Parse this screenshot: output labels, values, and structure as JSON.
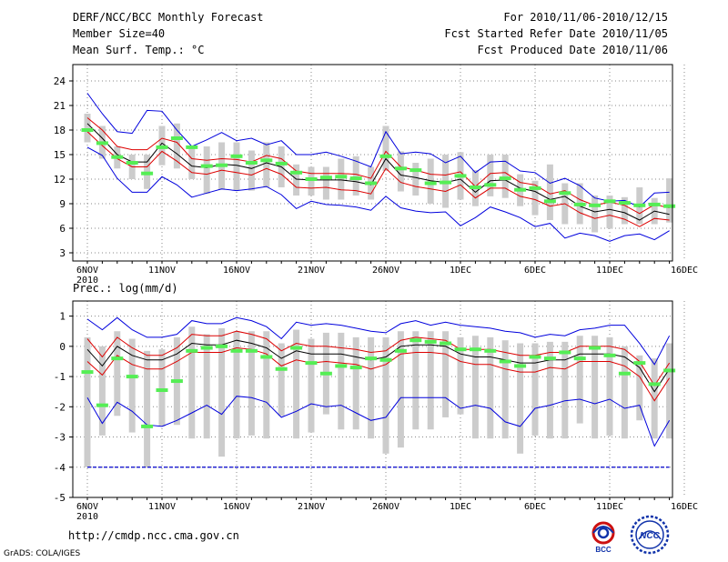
{
  "header": {
    "title": "DERF/NCC/BCC Monthly Forecast",
    "member_size": "Member Size=40",
    "variable": "Mean Surf. Temp.: °C",
    "period": "For 2010/11/06-2010/12/15",
    "started": "Fcst Started Refer Date 2010/11/05",
    "produced": "Fcst Produced Date 2010/11/06"
  },
  "footer": {
    "url": "http://cmdp.ncc.cma.gov.cn",
    "credit": "GrADS: COLA/IGES"
  },
  "logos": {
    "bcc": "BCC",
    "ncc": "NCC"
  },
  "colors": {
    "max_min": "#0000dd",
    "spread": "#dd0000",
    "mean": "#000000",
    "obs": "#55ee55",
    "box": "#cccccc",
    "floor": "#0000cc",
    "grid": "#888888"
  },
  "chart_data": [
    {
      "type": "box-line",
      "name": "temperature",
      "title": "Mean Surf. Temp.: °C",
      "x": [
        "11-06",
        "11-07",
        "11-08",
        "11-09",
        "11-10",
        "11-11",
        "11-12",
        "11-13",
        "11-14",
        "11-15",
        "11-16",
        "11-17",
        "11-18",
        "11-19",
        "11-20",
        "11-21",
        "11-22",
        "11-23",
        "11-24",
        "11-25",
        "11-26",
        "11-27",
        "11-28",
        "11-29",
        "11-30",
        "12-01",
        "12-02",
        "12-03",
        "12-04",
        "12-05",
        "12-06",
        "12-07",
        "12-08",
        "12-09",
        "12-10",
        "12-11",
        "12-12",
        "12-13",
        "12-14",
        "12-15"
      ],
      "xticks": [
        "6NOV",
        "11NOV",
        "16NOV",
        "21NOV",
        "26NOV",
        "1DEC",
        "6DEC",
        "11DEC",
        "16DEC"
      ],
      "xyear": "2010",
      "ylim": [
        2,
        26
      ],
      "yticks": [
        3,
        6,
        9,
        12,
        15,
        18,
        21,
        24
      ],
      "series": [
        {
          "name": "max",
          "values": [
            22.5,
            20,
            17.8,
            17.6,
            20.4,
            20.3,
            18,
            16,
            16.8,
            17.7,
            16.7,
            17,
            16.2,
            16.7,
            15,
            15,
            15.3,
            14.8,
            14.2,
            13.5,
            17.8,
            15.1,
            15.3,
            15.1,
            14,
            14.8,
            12.8,
            14.1,
            14.2,
            13,
            12.8,
            11.5,
            12.1,
            11.2,
            9.7,
            9.3,
            9.4,
            8.6,
            10.3,
            10.4
          ]
        },
        {
          "name": "upper",
          "values": [
            19.5,
            18,
            16,
            15.6,
            15.6,
            17,
            16.5,
            14.5,
            14.3,
            14.5,
            14.4,
            14.1,
            14.9,
            14.5,
            13,
            12.7,
            12.7,
            12.7,
            12.6,
            12.1,
            15.4,
            13.5,
            13.1,
            12.6,
            12.5,
            12.9,
            11.1,
            12.7,
            12.8,
            11.6,
            11.3,
            10.2,
            10.6,
            9.5,
            8.8,
            9.2,
            8.8,
            7.8,
            8.9,
            8.5
          ]
        },
        {
          "name": "mean",
          "values": [
            18.8,
            17,
            15,
            14.1,
            14.1,
            16.4,
            15.1,
            13.6,
            13.4,
            13.8,
            13.7,
            13.3,
            14,
            13.5,
            12,
            11.9,
            11.9,
            11.9,
            11.7,
            11.3,
            14.5,
            12.5,
            12.2,
            11.8,
            11.6,
            12,
            10.4,
            11.8,
            11.9,
            10.9,
            10.5,
            9.5,
            9.9,
            8.7,
            8,
            8.3,
            7.9,
            7,
            8.1,
            7.7
          ]
        },
        {
          "name": "lower",
          "values": [
            17.8,
            16.1,
            14.5,
            13.5,
            13.5,
            15.4,
            14.2,
            12.8,
            12.6,
            13.1,
            12.8,
            12.5,
            13.3,
            12.6,
            11,
            10.9,
            11,
            10.7,
            10.6,
            10.2,
            13.3,
            11.6,
            11.1,
            10.8,
            10.5,
            11.3,
            9.7,
            10.9,
            10.9,
            9.9,
            9.5,
            8.7,
            9,
            7.9,
            7.2,
            7.6,
            7.1,
            6.2,
            7.2,
            7
          ]
        },
        {
          "name": "min",
          "values": [
            15.9,
            14.9,
            12.1,
            10.4,
            10.4,
            12.3,
            11.3,
            9.8,
            10.3,
            10.8,
            10.6,
            10.8,
            11.1,
            10.1,
            8.4,
            9.3,
            8.9,
            8.8,
            8.6,
            8.2,
            9.9,
            8.5,
            8.1,
            7.9,
            8,
            6.3,
            7.3,
            8.6,
            8,
            7.3,
            6.2,
            6.6,
            4.8,
            5.4,
            5.1,
            4.4,
            5.1,
            5.3,
            4.6,
            5.7
          ]
        },
        {
          "name": "observed",
          "values": [
            18,
            16.4,
            14.7,
            14,
            12.7,
            15.9,
            17,
            15.9,
            13.6,
            13.7,
            14.8,
            14,
            14.3,
            13.9,
            12.8,
            12,
            12.2,
            12.3,
            12.1,
            11.5,
            14.8,
            13.3,
            13.1,
            11.5,
            11.6,
            12.4,
            11,
            11.3,
            12.1,
            10.7,
            10.9,
            9.3,
            10.3,
            8.9,
            8.8,
            9.3,
            9.1,
            8.8,
            8.9,
            8.7
          ]
        },
        {
          "name": "box_high",
          "values": [
            20,
            18.5,
            16,
            15,
            15,
            18.5,
            18.8,
            16,
            16,
            16.5,
            16.5,
            15.5,
            16.5,
            16,
            13.8,
            13.5,
            13.5,
            14.5,
            14.8,
            13.5,
            18.5,
            15.4,
            14,
            14.5,
            15,
            15.3,
            13.1,
            15,
            15,
            12.6,
            11.8,
            13.8,
            11.5,
            11.5,
            10,
            10,
            9.8,
            11,
            9.7,
            12.1
          ]
        },
        {
          "name": "box_low",
          "values": [
            16.5,
            14.5,
            13.3,
            12,
            10.8,
            13.7,
            13.3,
            12,
            10.2,
            10.7,
            10.6,
            10.6,
            11,
            11,
            10,
            10,
            9.5,
            9.5,
            10,
            9.5,
            13,
            10.5,
            10,
            9,
            8.5,
            9.5,
            8.7,
            9.9,
            9.7,
            8.7,
            7.6,
            7,
            6.5,
            6.5,
            5.5,
            6,
            6.5,
            6.5,
            6.5,
            6.7
          ]
        }
      ]
    },
    {
      "type": "box-line",
      "name": "precipitation",
      "title": "Prec.: log(mm/d)",
      "x": [
        "11-06",
        "11-07",
        "11-08",
        "11-09",
        "11-10",
        "11-11",
        "11-12",
        "11-13",
        "11-14",
        "11-15",
        "11-16",
        "11-17",
        "11-18",
        "11-19",
        "11-20",
        "11-21",
        "11-22",
        "11-23",
        "11-24",
        "11-25",
        "11-26",
        "11-27",
        "11-28",
        "11-29",
        "11-30",
        "12-01",
        "12-02",
        "12-03",
        "12-04",
        "12-05",
        "12-06",
        "12-07",
        "12-08",
        "12-09",
        "12-10",
        "12-11",
        "12-12",
        "12-13",
        "12-14",
        "12-15"
      ],
      "xticks": [
        "6NOV",
        "11NOV",
        "16NOV",
        "21NOV",
        "26NOV",
        "1DEC",
        "6DEC",
        "11DEC",
        "16DEC"
      ],
      "xyear": "2010",
      "ylim": [
        -5,
        1.5
      ],
      "yticks": [
        -5,
        -4,
        -3,
        -2,
        -1,
        0,
        1
      ],
      "series": [
        {
          "name": "max",
          "values": [
            0.9,
            0.55,
            0.95,
            0.55,
            0.3,
            0.3,
            0.4,
            0.85,
            0.75,
            0.75,
            0.95,
            0.85,
            0.65,
            0.25,
            0.8,
            0.7,
            0.75,
            0.7,
            0.6,
            0.5,
            0.45,
            0.75,
            0.85,
            0.7,
            0.8,
            0.7,
            0.65,
            0.6,
            0.5,
            0.45,
            0.3,
            0.4,
            0.35,
            0.55,
            0.6,
            0.7,
            0.7,
            0.1,
            -0.6,
            0.35
          ]
        },
        {
          "name": "upper",
          "values": [
            0.25,
            -0.35,
            0.3,
            -0.05,
            -0.3,
            -0.3,
            -0.05,
            0.4,
            0.35,
            0.35,
            0.5,
            0.4,
            0.25,
            -0.15,
            0.1,
            0,
            0,
            -0.05,
            -0.1,
            -0.2,
            -0.15,
            0.2,
            0.3,
            0.25,
            0.2,
            -0.1,
            -0.1,
            -0.1,
            -0.2,
            -0.3,
            -0.3,
            -0.2,
            -0.2,
            0,
            0,
            0,
            -0.1,
            -0.5,
            -1.3,
            -0.55
          ]
        },
        {
          "name": "mean",
          "values": [
            -0.1,
            -0.65,
            0,
            -0.3,
            -0.45,
            -0.45,
            -0.25,
            0.1,
            0.05,
            0.05,
            0.2,
            0.1,
            -0.05,
            -0.4,
            -0.15,
            -0.25,
            -0.25,
            -0.25,
            -0.35,
            -0.45,
            -0.35,
            0,
            0.05,
            0.05,
            0,
            -0.25,
            -0.35,
            -0.35,
            -0.45,
            -0.55,
            -0.55,
            -0.45,
            -0.45,
            -0.25,
            -0.25,
            -0.25,
            -0.35,
            -0.7,
            -1.5,
            -0.75
          ]
        },
        {
          "name": "lower",
          "values": [
            -0.5,
            -0.95,
            -0.3,
            -0.6,
            -0.75,
            -0.75,
            -0.5,
            -0.2,
            -0.2,
            -0.2,
            -0.05,
            -0.1,
            -0.25,
            -0.65,
            -0.45,
            -0.55,
            -0.5,
            -0.55,
            -0.6,
            -0.75,
            -0.6,
            -0.25,
            -0.2,
            -0.2,
            -0.25,
            -0.5,
            -0.6,
            -0.6,
            -0.75,
            -0.85,
            -0.85,
            -0.7,
            -0.75,
            -0.5,
            -0.5,
            -0.5,
            -0.65,
            -1,
            -1.8,
            -1.05
          ]
        },
        {
          "name": "min",
          "values": [
            -1.7,
            -2.55,
            -1.85,
            -2.15,
            -2.6,
            -2.65,
            -2.45,
            -2.2,
            -1.95,
            -2.25,
            -1.65,
            -1.7,
            -1.85,
            -2.35,
            -2.15,
            -1.9,
            -2,
            -1.95,
            -2.2,
            -2.45,
            -2.35,
            -1.7,
            -1.7,
            -1.7,
            -1.7,
            -2.05,
            -1.95,
            -2.05,
            -2.5,
            -2.65,
            -2.05,
            -1.95,
            -1.8,
            -1.75,
            -1.9,
            -1.75,
            -2.05,
            -1.95,
            -3.3,
            -2.45
          ]
        },
        {
          "name": "observed",
          "values": [
            -0.85,
            -1.95,
            -0.4,
            -1,
            -2.65,
            -1.45,
            -1.15,
            -0.15,
            -0.05,
            0,
            -0.15,
            -0.15,
            -0.35,
            -0.75,
            -0.05,
            -0.55,
            -0.9,
            -0.65,
            -0.7,
            -0.4,
            -0.45,
            -0.15,
            0.2,
            0.15,
            0.1,
            -0.1,
            -0.1,
            -0.15,
            -0.5,
            -0.65,
            -0.35,
            -0.4,
            -0.2,
            -0.4,
            -0.05,
            -0.3,
            -0.9,
            -0.55,
            -1.25,
            -0.8
          ]
        },
        {
          "name": "box_high",
          "values": [
            0.3,
            0,
            0.5,
            0.25,
            -0.15,
            -0.1,
            0.3,
            0.65,
            0.4,
            0.6,
            0.5,
            0.5,
            0.5,
            0.1,
            0.55,
            0.25,
            0.45,
            0.45,
            0.3,
            0.3,
            0.3,
            0.5,
            0.5,
            0.5,
            0.5,
            0.3,
            0.35,
            0.3,
            0.2,
            0.1,
            0.1,
            0.15,
            0.15,
            0.35,
            0.35,
            0.3,
            0,
            -0.3,
            -0.4,
            0.1
          ]
        },
        {
          "name": "box_low",
          "values": [
            -4,
            -2.95,
            -2.3,
            -2.85,
            -4,
            -2.65,
            -2.6,
            -3.05,
            -3.05,
            -3.65,
            -3.05,
            -2.95,
            -3.05,
            -2.3,
            -3.05,
            -2.85,
            -2.25,
            -2.75,
            -2.75,
            -3.05,
            -3.55,
            -3.35,
            -2.75,
            -2.75,
            -2.35,
            -2.25,
            -3.05,
            -3.05,
            -3.05,
            -3.55,
            -2.95,
            -3.05,
            -3.05,
            -2.55,
            -3.05,
            -2.95,
            -3.05,
            -2.45,
            -3.05,
            -3.05
          ]
        },
        {
          "name": "floor",
          "values": [
            -4,
            -4,
            -4,
            -4,
            -4,
            -4,
            -4,
            -4,
            -4,
            -4,
            -4,
            -4,
            -4,
            -4,
            -4,
            -4,
            -4,
            -4,
            -4,
            -4,
            -4,
            -4,
            -4,
            -4,
            -4,
            -4,
            -4,
            -4,
            -4,
            -4,
            -4,
            -4,
            -4,
            -4,
            -4,
            -4,
            -4,
            -4,
            -4,
            -4
          ]
        }
      ]
    }
  ]
}
